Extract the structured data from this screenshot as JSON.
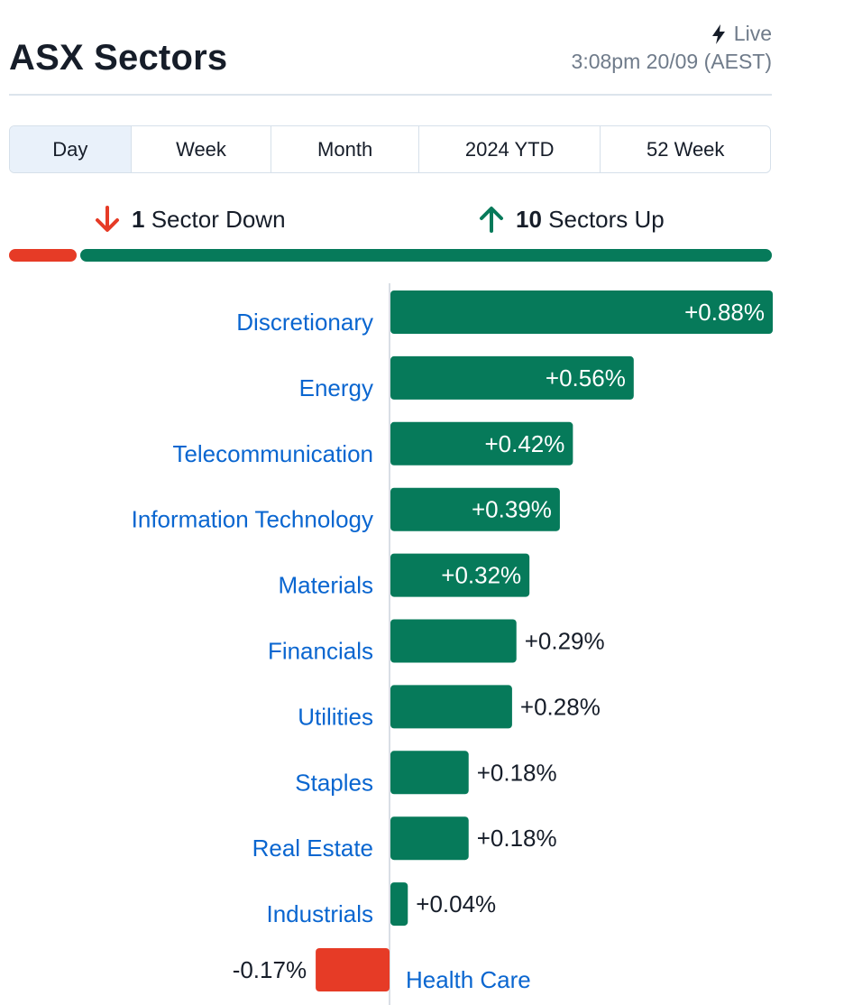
{
  "header": {
    "title": "ASX Sectors",
    "live_label": "Live",
    "timestamp": "3:08pm 20/09 (AEST)"
  },
  "tabs": [
    {
      "label": "Day",
      "active": true
    },
    {
      "label": "Week",
      "active": false
    },
    {
      "label": "Month",
      "active": false
    },
    {
      "label": "2024 YTD",
      "active": false
    },
    {
      "label": "52 Week",
      "active": false
    }
  ],
  "summary": {
    "down_count": "1",
    "down_text": "Sector Down",
    "up_count": "10",
    "up_text": "Sectors Up",
    "down_ratio": 0.0909
  },
  "colors": {
    "positive": "#067a5a",
    "negative": "#e63b26",
    "label": "#0a66d0",
    "axis": "#d9dee5"
  },
  "chart_data": {
    "type": "bar",
    "orientation": "horizontal",
    "title": "",
    "xlabel": "",
    "ylabel": "",
    "unit": "%",
    "xlim": [
      -0.17,
      0.88
    ],
    "categories": [
      "Discretionary",
      "Energy",
      "Telecommunication",
      "Information Technology",
      "Materials",
      "Financials",
      "Utilities",
      "Staples",
      "Real Estate",
      "Industrials",
      "Health Care"
    ],
    "values": [
      0.88,
      0.56,
      0.42,
      0.39,
      0.32,
      0.29,
      0.28,
      0.18,
      0.18,
      0.04,
      -0.17
    ],
    "value_labels": [
      "+0.88%",
      "+0.56%",
      "+0.42%",
      "+0.39%",
      "+0.32%",
      "+0.29%",
      "+0.28%",
      "+0.18%",
      "+0.18%",
      "+0.04%",
      "-0.17%"
    ]
  }
}
